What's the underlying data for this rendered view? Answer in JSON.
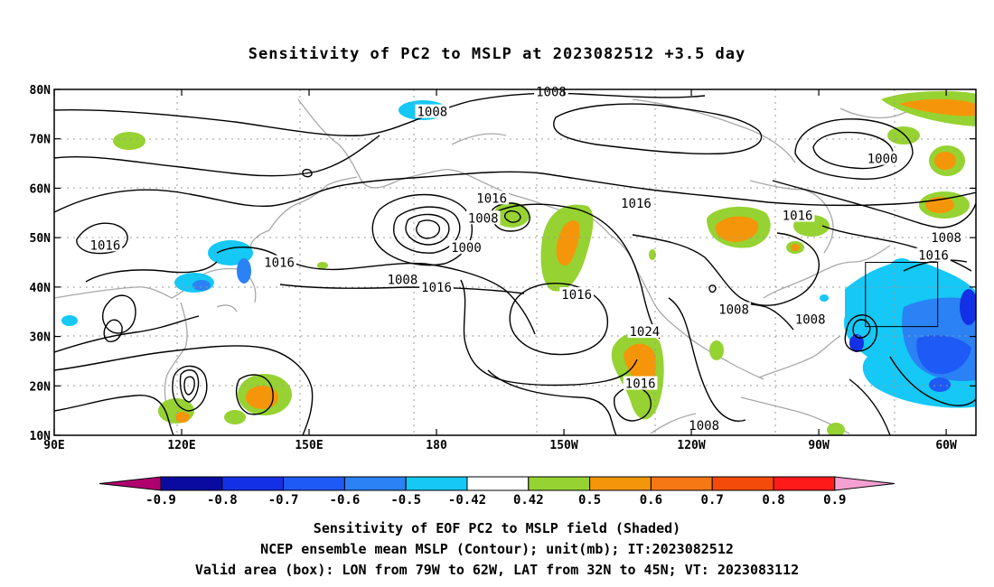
{
  "title": "Sensitivity of PC2 to MSLP at 2023082512 +3.5 day",
  "map": {
    "lat_labels": [
      "80N",
      "70N",
      "60N",
      "50N",
      "40N",
      "30N",
      "20N",
      "10N"
    ],
    "lon_labels": [
      "90E",
      "120E",
      "150E",
      "180",
      "150W",
      "120W",
      "90W",
      "60W"
    ],
    "contour_unit": "mb",
    "contour_labels": [
      {
        "text": "1008",
        "lon": 179,
        "lat": 75.5
      },
      {
        "text": "1008",
        "lon": 207,
        "lat": 79.5
      },
      {
        "text": "1000",
        "lon": 285,
        "lat": 66
      },
      {
        "text": "1016",
        "lon": 102,
        "lat": 48.5
      },
      {
        "text": "1016",
        "lon": 143,
        "lat": 45
      },
      {
        "text": "1016",
        "lon": 193,
        "lat": 58
      },
      {
        "text": "1016",
        "lon": 227,
        "lat": 57
      },
      {
        "text": "1016",
        "lon": 265,
        "lat": 54.5
      },
      {
        "text": "1008",
        "lon": 300,
        "lat": 50
      },
      {
        "text": "1016",
        "lon": 297,
        "lat": 46.5
      },
      {
        "text": "1008",
        "lon": 191,
        "lat": 54
      },
      {
        "text": "1000",
        "lon": 187,
        "lat": 48
      },
      {
        "text": "1008",
        "lon": 172,
        "lat": 41.5
      },
      {
        "text": "1016",
        "lon": 180,
        "lat": 40
      },
      {
        "text": "1016",
        "lon": 213,
        "lat": 38.5
      },
      {
        "text": "1024",
        "lon": 229,
        "lat": 31
      },
      {
        "text": "1008",
        "lon": 250,
        "lat": 35.5
      },
      {
        "text": "1008",
        "lon": 268,
        "lat": 33.5
      },
      {
        "text": "1016",
        "lon": 228,
        "lat": 20.5
      },
      {
        "text": "1008",
        "lon": 243,
        "lat": 12
      }
    ],
    "box": {
      "lon_min": -79,
      "lon_max": -62,
      "lat_min": 32,
      "lat_max": 45
    },
    "shading_colors": {
      "neg_0.9": "#b0006f",
      "neg_0.8": "#0a0aa0",
      "neg_0.7": "#1430e6",
      "neg_0.6": "#1e5af5",
      "neg_0.5": "#2a82f5",
      "neg_0.42": "#15c8f5",
      "pos_0.42": "#96d232",
      "pos_0.5": "#f5960a",
      "pos_0.6": "#f57814",
      "pos_0.7": "#f54b0a",
      "pos_0.8": "#ff1a1a",
      "pos_0.9": "#f5a0d2"
    }
  },
  "colorbar": {
    "labels": [
      "-0.9",
      "-0.8",
      "-0.7",
      "-0.6",
      "-0.5",
      "-0.42",
      "0.42",
      "0.5",
      "0.6",
      "0.7",
      "0.8",
      "0.9"
    ],
    "colors": [
      "#0a0aa0",
      "#1430e6",
      "#1e5af5",
      "#2a82f5",
      "#15c8f5",
      "#ffffff",
      "#96d232",
      "#f5960a",
      "#f57814",
      "#f54b0a",
      "#ff1a1a"
    ],
    "left_arrow_color": "#b0006f",
    "right_arrow_color": "#f5a0d2"
  },
  "footer": {
    "line1": "Sensitivity of EOF PC2 to MSLP field (Shaded)",
    "line2": "NCEP ensemble mean MSLP (Contour); unit(mb); IT:2023082512",
    "line3": "Valid area (box): LON from 79W to 62W, LAT from 32N to 45N; VT: 2023083112"
  }
}
